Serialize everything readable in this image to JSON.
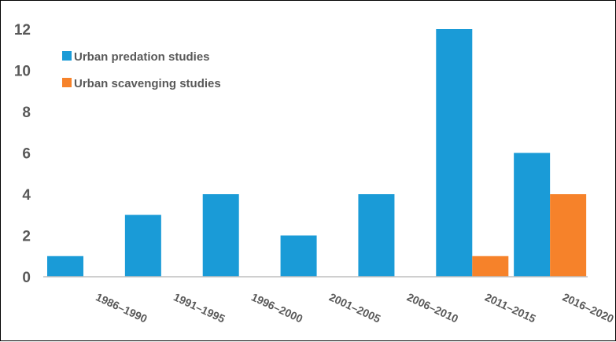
{
  "chart_data": {
    "type": "bar",
    "categories": [
      "1986–1990",
      "1991–1995",
      "1996–2000",
      "2001–2005",
      "2006–2010",
      "2011–2015",
      "2016–2020"
    ],
    "series": [
      {
        "name": "Urban predation studies",
        "values": [
          1,
          3,
          4,
          2,
          4,
          12,
          6
        ],
        "color": "#1A9BD7"
      },
      {
        "name": "Urban scavenging studies",
        "values": [
          0,
          0,
          0,
          0,
          0,
          1,
          4
        ],
        "color": "#F6822A"
      }
    ],
    "yticks": [
      "0",
      "2",
      "4",
      "6",
      "8",
      "10",
      "12"
    ],
    "ylim": [
      0,
      12
    ],
    "grid": false,
    "legend_position": "top-left",
    "axis_color": "#BFBFBF",
    "text_color": "#595959"
  }
}
